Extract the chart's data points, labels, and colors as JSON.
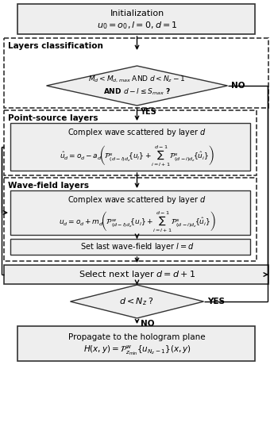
{
  "bg_color": "#ffffff",
  "init_text1": "Initialization",
  "init_text2": "$u_0 = o_0, l = 0, d = 1$",
  "layers_label": "Layers classification",
  "diamond1_line1": "$M_d < M_{d,max}$ AND $d < N_z - 1$",
  "diamond1_line2": "AND $d - l \\leq S_{max}$ ?",
  "yes1": "YES",
  "no1": "NO",
  "ps_label": "Point-source layers",
  "ps_box_title": "Complex wave scattered by layer $d$",
  "ps_formula_left": "$\\hat{u}_d = o_d - a_d\\!\\left(\\mathcal{P}^s_{(d-l)d_z}\\!\\{u_l\\} + \\!\\sum_{i=l+1}^{d-1}\\mathcal{P}^s_{(d-i)d_z}\\!\\{\\hat{u}_i\\}\\right)$",
  "wf_label": "Wave-field layers",
  "wf_box_title": "Complex wave scattered by layer $d$",
  "wf_formula": "$u_d = o_d + m_d\\!\\left(\\mathcal{P}^w_{(d-l)d_z}\\!\\{u_l\\} + \\!\\sum_{i=l+1}^{d-1}\\mathcal{P}^s_{(d-i)d_z}\\!\\{\\hat{u}_i\\}\\right)$",
  "set_layer": "Set last wave-field layer $l = d$",
  "select_next": "Select next layer $d = d + 1$",
  "diamond2_text": "$d < N_z$ ?",
  "yes2": "YES",
  "no2": "NO",
  "prop_line1": "Propagate to the hologram plane",
  "prop_line2": "$H(x,y) = \\mathcal{P}^w_{z_{\\mathrm{min}}}\\{u_{N_z-1}\\}(x,y)$"
}
